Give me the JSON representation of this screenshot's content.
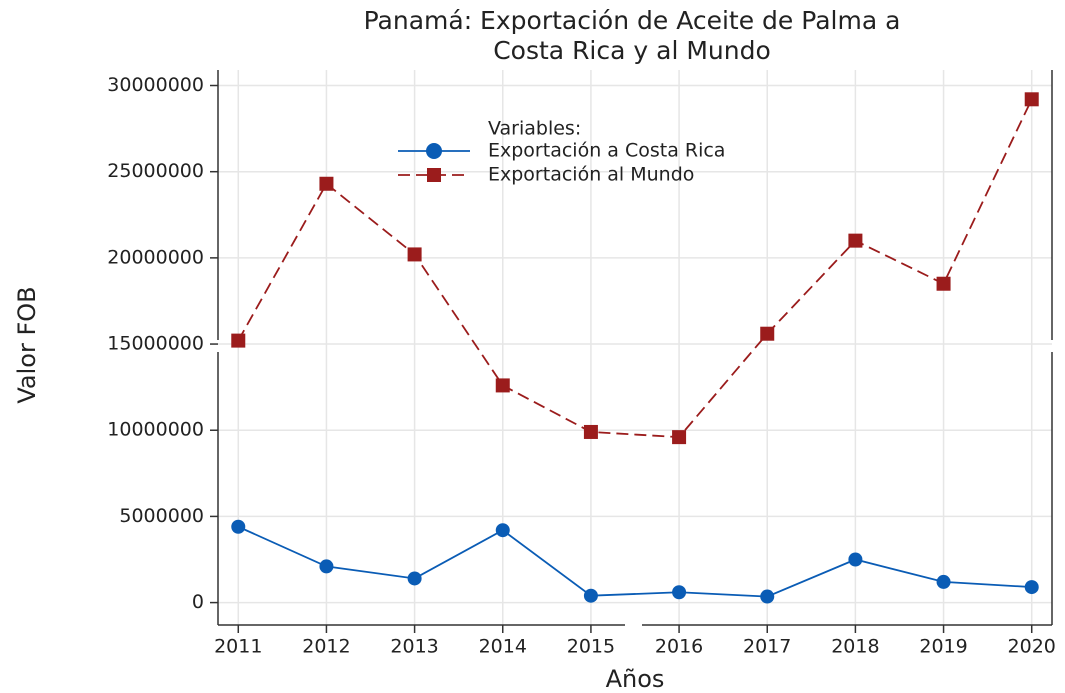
{
  "chart_data": {
    "type": "line",
    "title": [
      "Panamá: Exportación de Aceite de Palma a",
      "Costa Rica y al Mundo"
    ],
    "x_label": "Años",
    "y_label": "Valor FOB",
    "legend_title": "Variables:",
    "x": [
      2011,
      2012,
      2013,
      2014,
      2015,
      2016,
      2017,
      2018,
      2019,
      2020
    ],
    "series": [
      {
        "name": "Exportación a Costa Rica",
        "color": "#0a5cb5",
        "marker": "circle",
        "dash": false,
        "values": [
          4400000,
          2100000,
          1400000,
          4200000,
          400000,
          600000,
          350000,
          2500000,
          1200000,
          900000
        ]
      },
      {
        "name": "Exportación al Mundo",
        "color": "#9b1c1c",
        "marker": "square",
        "dash": true,
        "values": [
          15200000,
          24300000,
          20200000,
          12600000,
          9900000,
          9600000,
          15600000,
          21000000,
          18500000,
          29200000
        ]
      }
    ],
    "xlim": [
      2010.77,
      2020.23
    ],
    "xticks": [
      2011,
      2012,
      2013,
      2014,
      2015,
      2016,
      2017,
      2018,
      2019,
      2020
    ],
    "ylim": [
      -1300000,
      30900000
    ],
    "yticks": [
      0,
      5000000,
      10000000,
      15000000,
      20000000,
      25000000,
      30000000
    ],
    "grid": true
  }
}
